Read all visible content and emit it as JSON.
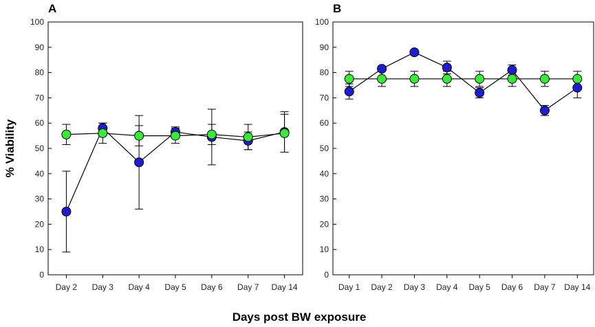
{
  "figure": {
    "ylabel": "% Viability",
    "xlabel": "Days post BW exposure"
  },
  "chart_data": [
    {
      "type": "line",
      "panel": "A",
      "categories": [
        "Day 2",
        "Day 3",
        "Day 4",
        "Day 5",
        "Day 6",
        "Day 7",
        "Day 14"
      ],
      "ylim": [
        0,
        100
      ],
      "yticks": [
        0,
        10,
        20,
        30,
        40,
        50,
        60,
        70,
        80,
        90,
        100
      ],
      "ylabel": "% Viability",
      "xlabel": "Days post BW exposure",
      "series": [
        {
          "name": "blue",
          "color": "#1c1cd6",
          "values": [
            25,
            58,
            44.5,
            56.5,
            54.5,
            53,
            56.5
          ],
          "errors": [
            16,
            2,
            18.5,
            2,
            11,
            3.5,
            8
          ]
        },
        {
          "name": "green",
          "color": "#33ee33",
          "values": [
            55.5,
            56,
            55,
            55,
            55.5,
            54.5,
            56
          ],
          "errors": [
            4,
            4,
            4,
            3,
            4,
            5,
            7.5
          ]
        }
      ]
    },
    {
      "type": "line",
      "panel": "B",
      "categories": [
        "Day 1",
        "Day 2",
        "Day 3",
        "Day 4",
        "Day 5",
        "Day 6",
        "Day 7",
        "Day 14"
      ],
      "ylim": [
        0,
        100
      ],
      "yticks": [
        0,
        10,
        20,
        30,
        40,
        50,
        60,
        70,
        80,
        90,
        100
      ],
      "ylabel": "% Viability",
      "xlabel": "Days post BW exposure",
      "series": [
        {
          "name": "blue",
          "color": "#1c1cd6",
          "values": [
            72.5,
            81.5,
            88,
            82,
            72,
            81,
            65,
            74
          ],
          "errors": [
            3,
            1,
            1,
            2.5,
            2,
            2,
            2,
            4
          ]
        },
        {
          "name": "green",
          "color": "#33ee33",
          "values": [
            77.5,
            77.5,
            77.5,
            77.5,
            77.5,
            77.5,
            77.5,
            77.5
          ],
          "errors": [
            3,
            3,
            3,
            3,
            3,
            3,
            3,
            3
          ]
        }
      ]
    }
  ]
}
